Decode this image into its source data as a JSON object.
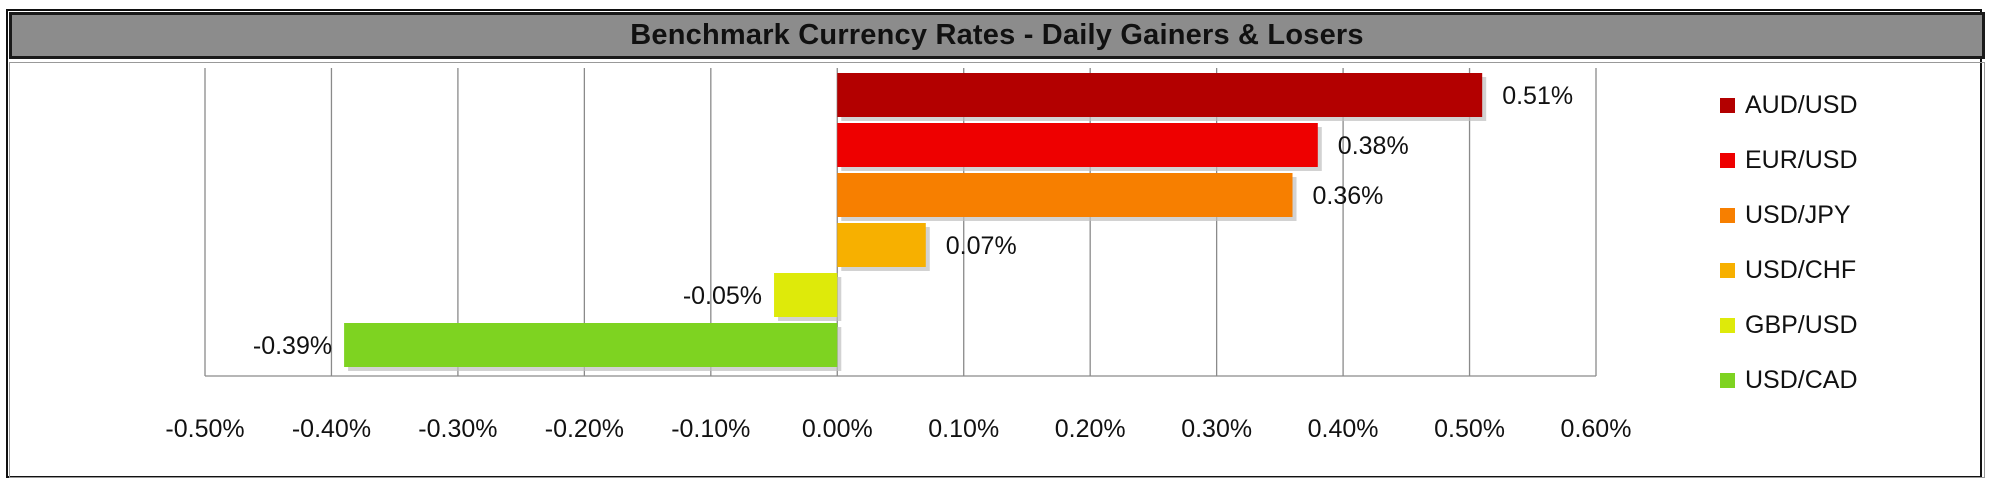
{
  "chart_data": {
    "type": "bar",
    "orientation": "horizontal",
    "title": "Benchmark Currency Rates - Daily Gainers & Losers",
    "categories": [
      "AUD/USD",
      "EUR/USD",
      "USD/JPY",
      "USD/CHF",
      "GBP/USD",
      "USD/CAD"
    ],
    "values": [
      0.51,
      0.38,
      0.36,
      0.07,
      -0.05,
      -0.39
    ],
    "data_labels": [
      "0.51%",
      "0.38%",
      "0.36%",
      "0.07%",
      "-0.05%",
      "-0.39%"
    ],
    "colors": [
      "#B30000",
      "#EE0000",
      "#F77F00",
      "#F7B000",
      "#DEEA0A",
      "#7ED321"
    ],
    "xlim": [
      -0.5,
      0.6
    ],
    "xticks": [
      -0.5,
      -0.4,
      -0.3,
      -0.2,
      -0.1,
      0.0,
      0.1,
      0.2,
      0.3,
      0.4,
      0.5,
      0.6
    ],
    "xtick_labels": [
      "-0.50%",
      "-0.40%",
      "-0.30%",
      "-0.20%",
      "-0.10%",
      "0.00%",
      "0.10%",
      "0.20%",
      "0.30%",
      "0.40%",
      "0.50%",
      "0.60%"
    ],
    "xlabel": "",
    "ylabel": "",
    "grid": "vertical",
    "legend_position": "right"
  }
}
